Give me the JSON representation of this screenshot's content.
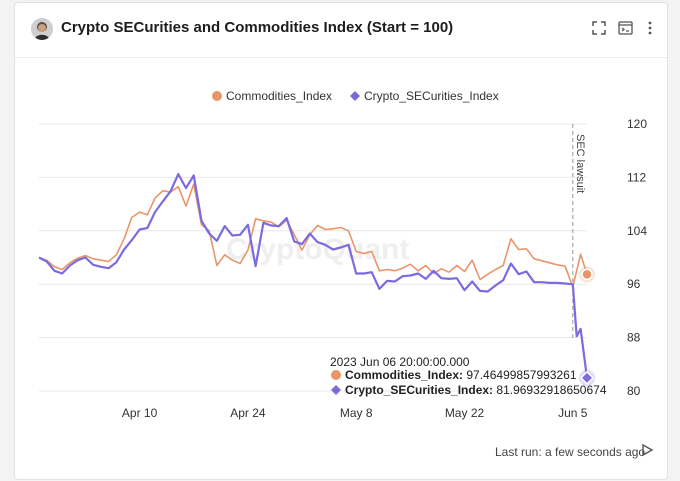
{
  "header": {
    "title": "Crypto SECurities and Commodities Index (Start = 100)",
    "icons": [
      "avatar",
      "fullscreen-icon",
      "terminal-icon",
      "more-vertical-icon"
    ]
  },
  "footer": {
    "last_run": "Last run: a few seconds ago"
  },
  "watermark": "CryptoQuant",
  "tooltip": {
    "date": "2023 Jun 06 20:00:00.000",
    "rows": [
      {
        "name": "Commodities_Index",
        "value": "97.46499857993261"
      },
      {
        "name": "Crypto_SECurities_Index",
        "value": "81.96932918650674"
      }
    ]
  },
  "chart_data": {
    "type": "line",
    "title": "Crypto SECurities and Commodities Index (Start = 100)",
    "y_axis": {
      "position": "right",
      "range": [
        80,
        120
      ],
      "ticks": [
        80,
        88,
        96,
        104,
        112,
        120
      ]
    },
    "x_axis": {
      "range": [
        "2023-03-28",
        "2023-06-06"
      ],
      "ticks": [
        {
          "label": "Apr 10",
          "date": "2023-04-10"
        },
        {
          "label": "Apr 24",
          "date": "2023-04-24"
        },
        {
          "label": "May 8",
          "date": "2023-05-08"
        },
        {
          "label": "May 22",
          "date": "2023-05-22"
        },
        {
          "label": "Jun 5",
          "date": "2023-06-05"
        }
      ]
    },
    "annotations": [
      {
        "type": "vline",
        "date": "2023-06-05",
        "label": "SEC lawsuit"
      }
    ],
    "colors": {
      "Commodities_Index": "#e8956a",
      "Crypto_SECurities_Index": "#7b6be0",
      "grid": "#e8e8e8"
    },
    "series": [
      {
        "name": "Commodities_Index",
        "marker": "circle",
        "points": [
          [
            "2023-03-28",
            100
          ],
          [
            "2023-03-29",
            99.6
          ],
          [
            "2023-03-30",
            98.6
          ],
          [
            "2023-03-31",
            98.2
          ],
          [
            "2023-04-01",
            99.2
          ],
          [
            "2023-04-02",
            99.9
          ],
          [
            "2023-04-03",
            100.3
          ],
          [
            "2023-04-04",
            99.8
          ],
          [
            "2023-04-05",
            99.6
          ],
          [
            "2023-04-06",
            99.4
          ],
          [
            "2023-04-07",
            100.4
          ],
          [
            "2023-04-08",
            102.8
          ],
          [
            "2023-04-09",
            106
          ],
          [
            "2023-04-10",
            106.8
          ],
          [
            "2023-04-11",
            106.4
          ],
          [
            "2023-04-12",
            108.9
          ],
          [
            "2023-04-13",
            110
          ],
          [
            "2023-04-14",
            109.8
          ],
          [
            "2023-04-15",
            110.6
          ],
          [
            "2023-04-16",
            107.7
          ],
          [
            "2023-04-17",
            111
          ],
          [
            "2023-04-18",
            104.9
          ],
          [
            "2023-04-19",
            104
          ],
          [
            "2023-04-20",
            98.8
          ],
          [
            "2023-04-21",
            100.4
          ],
          [
            "2023-04-22",
            99.6
          ],
          [
            "2023-04-23",
            99.1
          ],
          [
            "2023-04-24",
            101.1
          ],
          [
            "2023-04-25",
            105.8
          ],
          [
            "2023-04-26",
            105.5
          ],
          [
            "2023-04-27",
            105.3
          ],
          [
            "2023-04-28",
            104.6
          ],
          [
            "2023-04-29",
            105.6
          ],
          [
            "2023-04-30",
            103.4
          ],
          [
            "2023-05-01",
            101.1
          ],
          [
            "2023-05-02",
            103.4
          ],
          [
            "2023-05-03",
            104.8
          ],
          [
            "2023-05-04",
            104.2
          ],
          [
            "2023-05-05",
            104.3
          ],
          [
            "2023-05-06",
            104.5
          ],
          [
            "2023-05-07",
            104
          ],
          [
            "2023-05-08",
            100.9
          ],
          [
            "2023-05-09",
            100.6
          ],
          [
            "2023-05-10",
            100.9
          ],
          [
            "2023-05-11",
            98
          ],
          [
            "2023-05-12",
            98.2
          ],
          [
            "2023-05-13",
            98
          ],
          [
            "2023-05-14",
            98.4
          ],
          [
            "2023-05-15",
            99
          ],
          [
            "2023-05-16",
            98
          ],
          [
            "2023-05-17",
            98.8
          ],
          [
            "2023-05-18",
            97.6
          ],
          [
            "2023-05-19",
            98.3
          ],
          [
            "2023-05-20",
            97.8
          ],
          [
            "2023-05-21",
            98.8
          ],
          [
            "2023-05-22",
            97.9
          ],
          [
            "2023-05-23",
            99.6
          ],
          [
            "2023-05-24",
            96.7
          ],
          [
            "2023-05-25",
            97.5
          ],
          [
            "2023-05-26",
            98.2
          ],
          [
            "2023-05-27",
            98.8
          ],
          [
            "2023-05-28",
            102.8
          ],
          [
            "2023-05-29",
            101.2
          ],
          [
            "2023-05-30",
            101.3
          ],
          [
            "2023-05-31",
            99.8
          ],
          [
            "2023-06-01",
            99.5
          ],
          [
            "2023-06-02",
            99.2
          ],
          [
            "2023-06-03",
            98.9
          ],
          [
            "2023-06-04",
            98.7
          ],
          [
            "2023-06-05",
            95.6
          ],
          [
            "2023-06-06",
            100.5
          ],
          [
            "2023-06-06T20:00",
            97.46499857993261
          ]
        ]
      },
      {
        "name": "Crypto_SECurities_Index",
        "marker": "diamond",
        "points": [
          [
            "2023-03-28",
            100
          ],
          [
            "2023-03-29",
            99.4
          ],
          [
            "2023-03-30",
            98
          ],
          [
            "2023-03-31",
            97.6
          ],
          [
            "2023-04-01",
            98.8
          ],
          [
            "2023-04-02",
            99.6
          ],
          [
            "2023-04-03",
            100
          ],
          [
            "2023-04-04",
            98.9
          ],
          [
            "2023-04-05",
            98.6
          ],
          [
            "2023-04-06",
            98.4
          ],
          [
            "2023-04-07",
            99.3
          ],
          [
            "2023-04-08",
            101.2
          ],
          [
            "2023-04-09",
            102.6
          ],
          [
            "2023-04-10",
            104.2
          ],
          [
            "2023-04-11",
            104.4
          ],
          [
            "2023-04-12",
            106.8
          ],
          [
            "2023-04-13",
            108.4
          ],
          [
            "2023-04-14",
            109.9
          ],
          [
            "2023-04-15",
            112.5
          ],
          [
            "2023-04-16",
            110.4
          ],
          [
            "2023-04-17",
            112.3
          ],
          [
            "2023-04-18",
            105.5
          ],
          [
            "2023-04-19",
            103.6
          ],
          [
            "2023-04-20",
            102.5
          ],
          [
            "2023-04-21",
            104.7
          ],
          [
            "2023-04-22",
            103.3
          ],
          [
            "2023-04-23",
            103.4
          ],
          [
            "2023-04-24",
            104.9
          ],
          [
            "2023-04-25",
            98.7
          ],
          [
            "2023-04-26",
            105.2
          ],
          [
            "2023-04-27",
            104.8
          ],
          [
            "2023-04-28",
            104.7
          ],
          [
            "2023-04-29",
            105.9
          ],
          [
            "2023-04-30",
            102.4
          ],
          [
            "2023-05-01",
            102
          ],
          [
            "2023-05-02",
            103.6
          ],
          [
            "2023-05-03",
            102.3
          ],
          [
            "2023-05-04",
            101.9
          ],
          [
            "2023-05-05",
            101.2
          ],
          [
            "2023-05-06",
            101.5
          ],
          [
            "2023-05-07",
            101.9
          ],
          [
            "2023-05-08",
            97.6
          ],
          [
            "2023-05-09",
            97.6
          ],
          [
            "2023-05-10",
            97.8
          ],
          [
            "2023-05-11",
            95.3
          ],
          [
            "2023-05-12",
            96.5
          ],
          [
            "2023-05-13",
            96.4
          ],
          [
            "2023-05-14",
            97.2
          ],
          [
            "2023-05-15",
            97.3
          ],
          [
            "2023-05-16",
            97.6
          ],
          [
            "2023-05-17",
            96.8
          ],
          [
            "2023-05-18",
            98
          ],
          [
            "2023-05-19",
            96.9
          ],
          [
            "2023-05-20",
            96.8
          ],
          [
            "2023-05-21",
            96.9
          ],
          [
            "2023-05-22",
            95.1
          ],
          [
            "2023-05-23",
            96.4
          ],
          [
            "2023-05-24",
            95
          ],
          [
            "2023-05-25",
            94.9
          ],
          [
            "2023-05-26",
            95.8
          ],
          [
            "2023-05-27",
            96.6
          ],
          [
            "2023-05-28",
            99.1
          ],
          [
            "2023-05-29",
            97.5
          ],
          [
            "2023-05-30",
            97.9
          ],
          [
            "2023-05-31",
            96.3
          ],
          [
            "2023-06-01",
            96.3
          ],
          [
            "2023-06-02",
            96.2
          ],
          [
            "2023-06-03",
            96.2
          ],
          [
            "2023-06-04",
            96.1
          ],
          [
            "2023-06-05",
            96
          ],
          [
            "2023-06-05T12:00",
            88.2
          ],
          [
            "2023-06-06",
            89.3
          ],
          [
            "2023-06-06T20:00",
            81.96932918650674
          ]
        ]
      }
    ]
  }
}
